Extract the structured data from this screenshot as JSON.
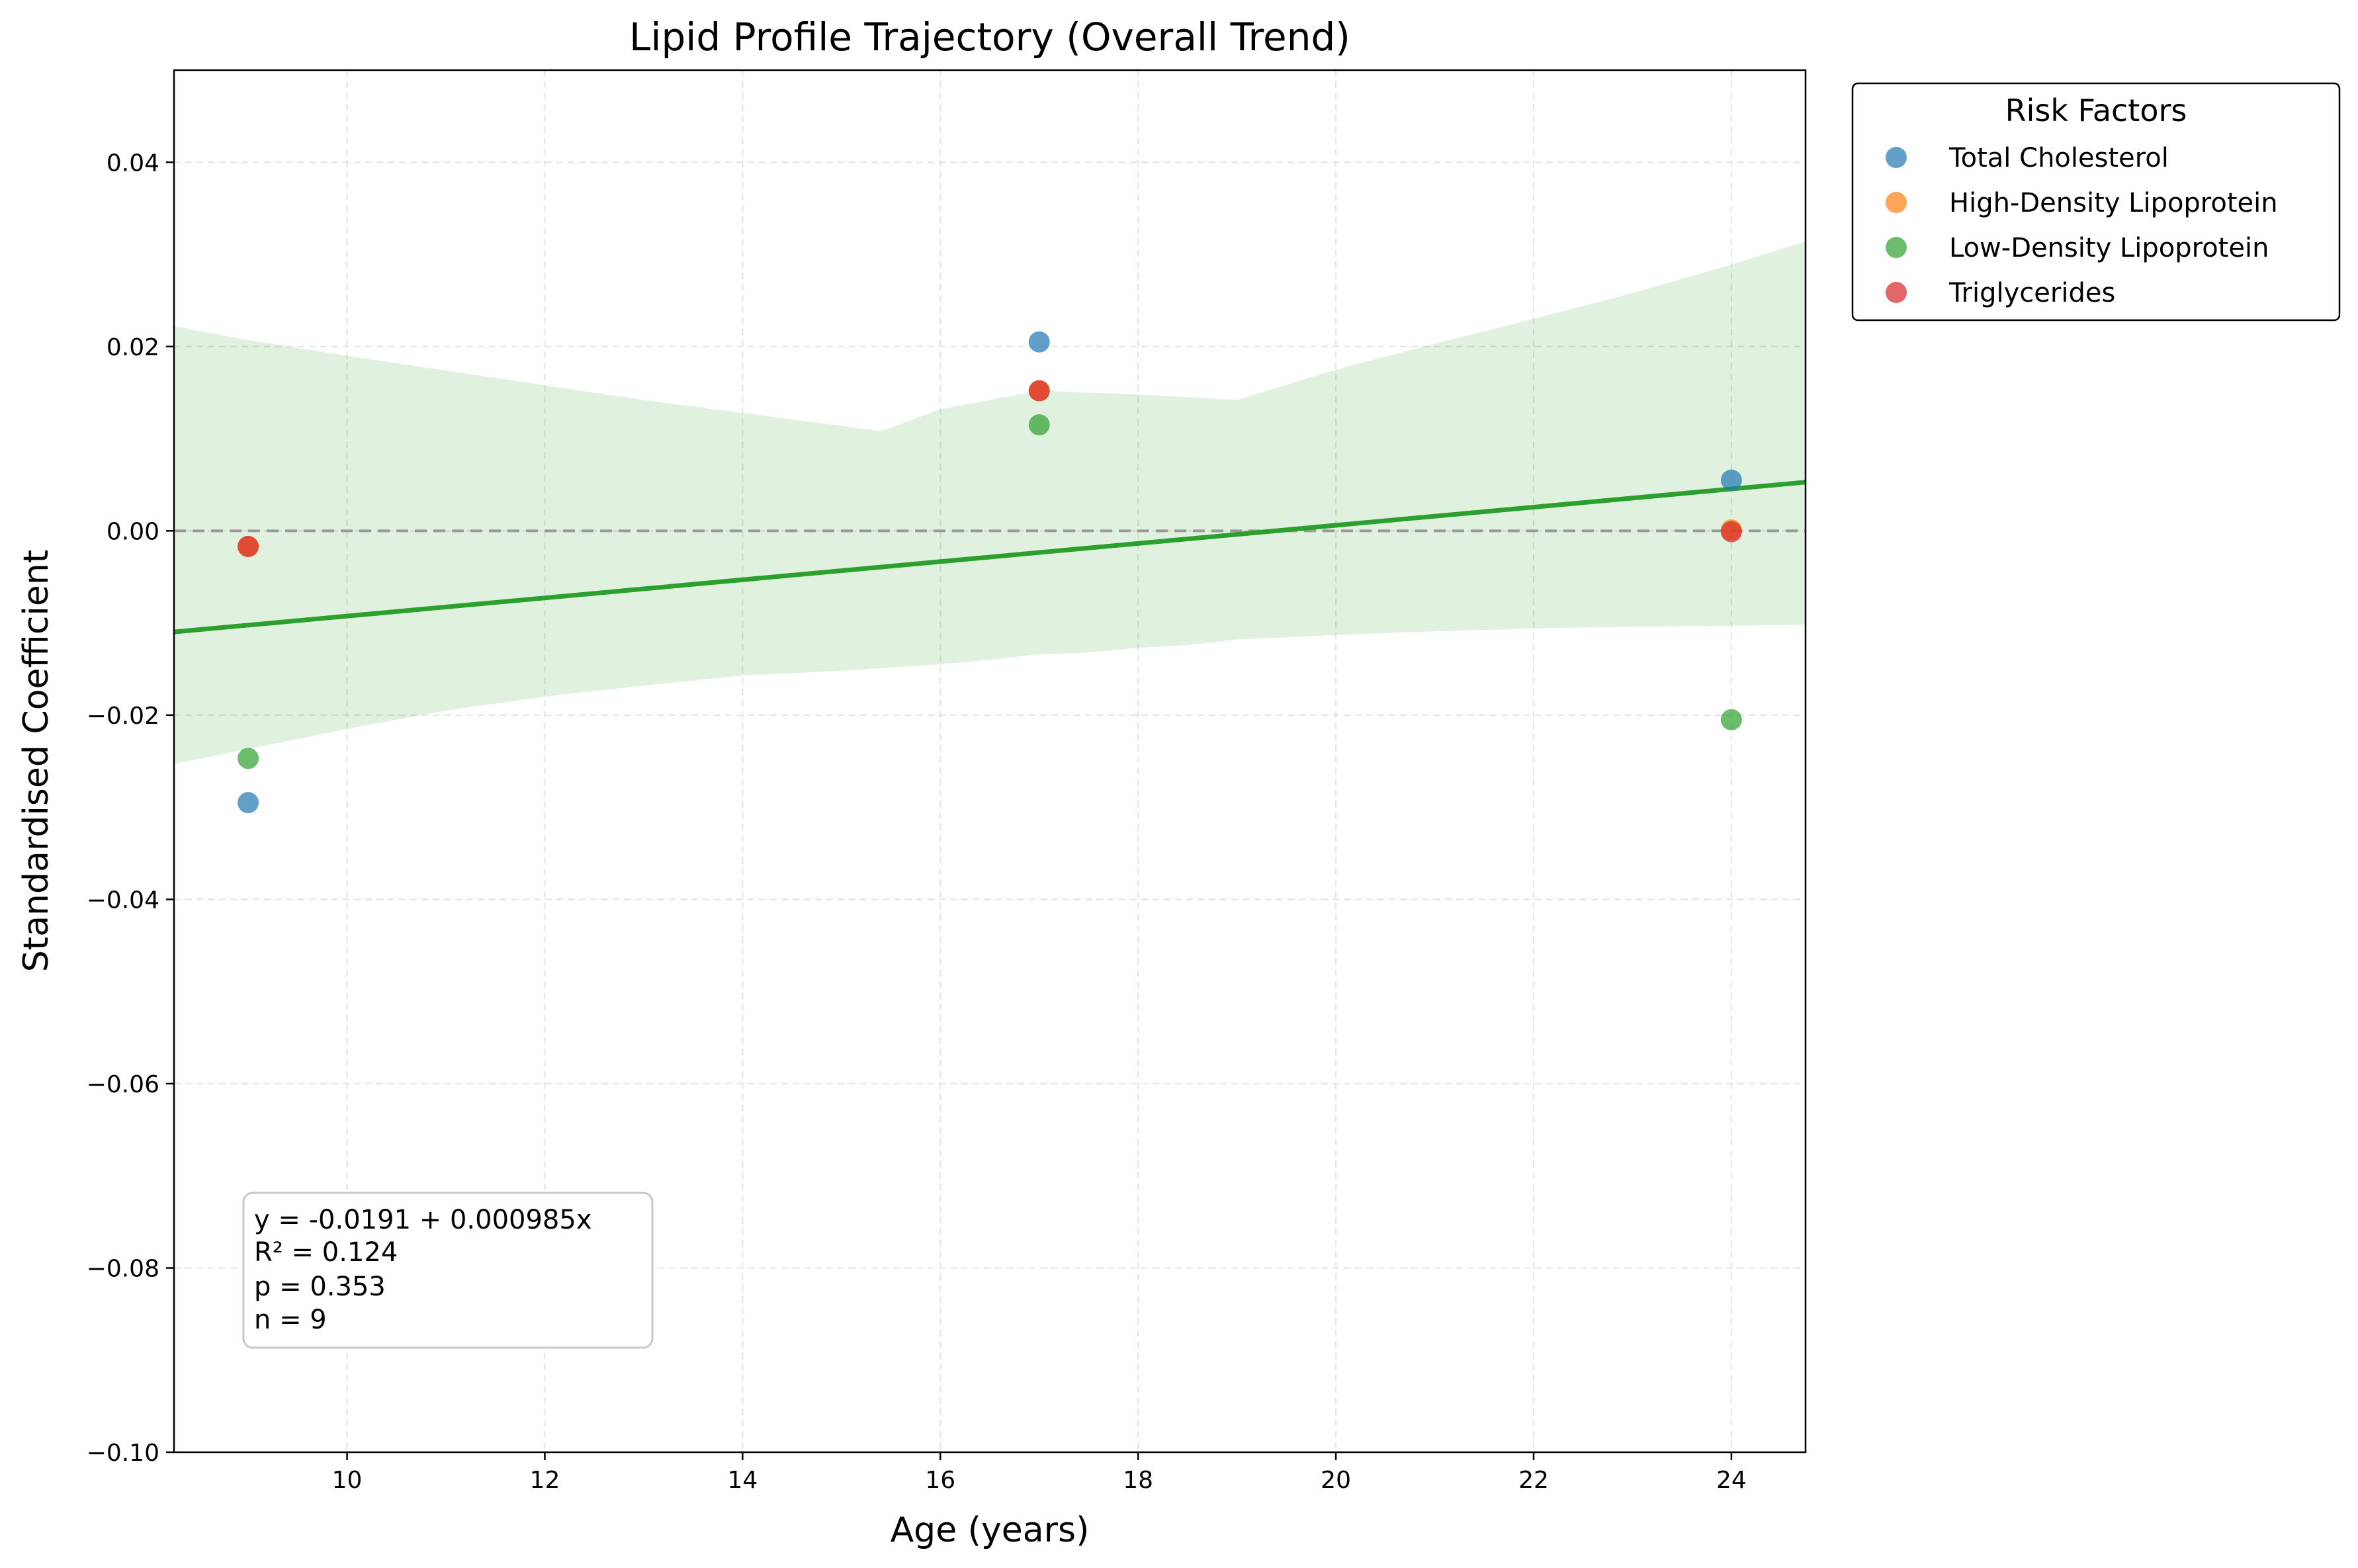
{
  "chart_data": {
    "type": "scatter",
    "title": "Lipid Profile Trajectory (Overall Trend)",
    "xlabel": "Age (years)",
    "ylabel": "Standardised Coefficient",
    "xlim": [
      8.25,
      24.75
    ],
    "ylim": [
      -0.1,
      0.05
    ],
    "xticks": [
      10,
      12,
      14,
      16,
      18,
      20,
      22,
      24
    ],
    "xtick_labels": [
      "10",
      "12",
      "14",
      "16",
      "18",
      "20",
      "22",
      "24"
    ],
    "yticks": [
      -0.1,
      -0.08,
      -0.06,
      -0.04,
      -0.02,
      0.0,
      0.02,
      0.04
    ],
    "ytick_labels": [
      "−0.10",
      "−0.08",
      "−0.06",
      "−0.04",
      "−0.02",
      "0.00",
      "0.02",
      "0.04"
    ],
    "grid": true,
    "reference_line_y": 0.0,
    "legend": {
      "title": "Risk Factors",
      "placement": "outside top-right"
    },
    "series": [
      {
        "name": "Total Cholesterol",
        "color": "#1f77b4",
        "x": [
          9,
          17,
          24
        ],
        "y": [
          -0.0295,
          0.0205,
          0.0055
        ]
      },
      {
        "name": "High-Density Lipoprotein",
        "color": "#ff7f0e",
        "x": [
          9,
          17,
          24
        ],
        "y": [
          -0.0017,
          0.0152,
          0.0001
        ]
      },
      {
        "name": "Low-Density Lipoprotein",
        "color": "#2ca02c",
        "x": [
          9,
          17,
          24
        ],
        "y": [
          -0.0247,
          0.0115,
          -0.0205
        ]
      },
      {
        "name": "Triglycerides",
        "color": "#d62728",
        "x": [
          9,
          17,
          24
        ],
        "y": [
          -0.0017,
          0.0152,
          -0.0001
        ]
      }
    ],
    "trend": {
      "intercept": -0.0191,
      "slope": 0.000985,
      "color": "#2ca02c",
      "band_color": "#2ca02c",
      "band": {
        "x": [
          8.25,
          9,
          10,
          11,
          12,
          13,
          14,
          15,
          15.4,
          16,
          16.5,
          17,
          17.5,
          18,
          18.5,
          19,
          20,
          21,
          22,
          23,
          24,
          24.75
        ],
        "upper": [
          0.0222,
          0.0207,
          0.019,
          0.0174,
          0.0158,
          0.0142,
          0.0128,
          0.0114,
          0.0108,
          0.0132,
          0.0142,
          0.0152,
          0.015,
          0.0148,
          0.0145,
          0.0142,
          0.0175,
          0.0203,
          0.023,
          0.0258,
          0.0289,
          0.0314
        ],
        "lower": [
          -0.0253,
          -0.0237,
          -0.0215,
          -0.0195,
          -0.018,
          -0.0168,
          -0.0157,
          -0.0152,
          -0.0149,
          -0.0145,
          -0.014,
          -0.0134,
          -0.0132,
          -0.0127,
          -0.0124,
          -0.0118,
          -0.0113,
          -0.0109,
          -0.0106,
          -0.0104,
          -0.0103,
          -0.0102
        ]
      }
    },
    "annotation": [
      "y = -0.0191 + 0.000985x",
      "R² = 0.124",
      "p = 0.353",
      "n = 9"
    ]
  }
}
